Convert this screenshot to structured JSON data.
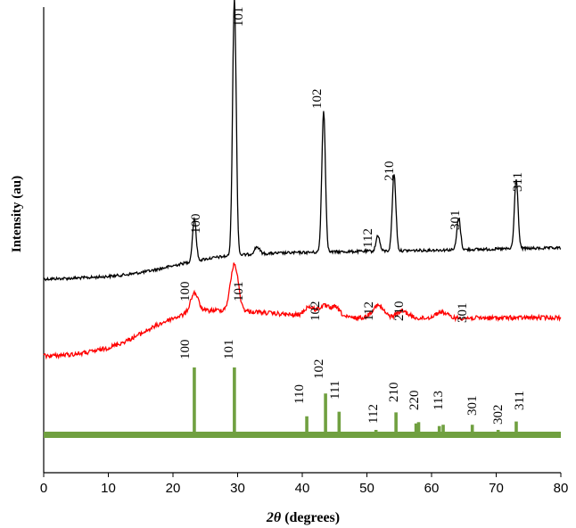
{
  "chart_data": {
    "type": "line",
    "title": "",
    "xlabel_prefix": "2θ",
    "xlabel_suffix": " (degrees)",
    "ylabel": "Intensity (au)",
    "xlim": [
      0,
      80
    ],
    "x_ticks": [
      0,
      10,
      20,
      30,
      40,
      50,
      60,
      70,
      80
    ],
    "x_tick_labels": [
      "0",
      "10",
      "20",
      "30",
      "40",
      "50",
      "60",
      "70",
      "80"
    ],
    "grid": false,
    "legend": "none",
    "series": [
      {
        "color": "#000000",
        "style": "pattern",
        "peaks": [
          {
            "x": 23.3,
            "label": "100"
          },
          {
            "x": 29.5,
            "label": "101"
          },
          {
            "x": 43.3,
            "label": "102"
          },
          {
            "x": 51.7,
            "label": "112"
          },
          {
            "x": 54.2,
            "label": "210"
          },
          {
            "x": 64.2,
            "label": "301"
          },
          {
            "x": 73.1,
            "label": "311"
          }
        ]
      },
      {
        "color": "#ff0000",
        "style": "pattern",
        "peaks": [
          {
            "x": 23.3,
            "label": "100"
          },
          {
            "x": 29.5,
            "label": "101"
          },
          {
            "x": 43.3,
            "label": "102"
          },
          {
            "x": 51.7,
            "label": "112"
          },
          {
            "x": 55.5,
            "label": "210"
          },
          {
            "x": 61.5,
            "label": "301"
          }
        ]
      },
      {
        "color": "#70a040",
        "style": "stick",
        "peaks": [
          {
            "x": 23.3,
            "rel": 1.0,
            "label": "100"
          },
          {
            "x": 29.5,
            "rel": 1.0,
            "label": "101"
          },
          {
            "x": 40.7,
            "rel": 0.25,
            "label": "110"
          },
          {
            "x": 43.6,
            "rel": 0.6,
            "label": "102"
          },
          {
            "x": 45.7,
            "rel": 0.32,
            "label": "111"
          },
          {
            "x": 51.4,
            "rel": 0.04,
            "label": "112"
          },
          {
            "x": 54.5,
            "rel": 0.31,
            "label": "210"
          },
          {
            "x": 57.6,
            "rel": 0.14,
            "label": "220"
          },
          {
            "x": 58.0,
            "rel": 0.16,
            "label": ""
          },
          {
            "x": 61.2,
            "rel": 0.1,
            "label": "113"
          },
          {
            "x": 61.8,
            "rel": 0.12,
            "label": ""
          },
          {
            "x": 66.3,
            "rel": 0.12,
            "label": "301"
          },
          {
            "x": 70.3,
            "rel": 0.04,
            "label": "302"
          },
          {
            "x": 73.1,
            "rel": 0.17,
            "label": "311"
          }
        ]
      }
    ]
  }
}
